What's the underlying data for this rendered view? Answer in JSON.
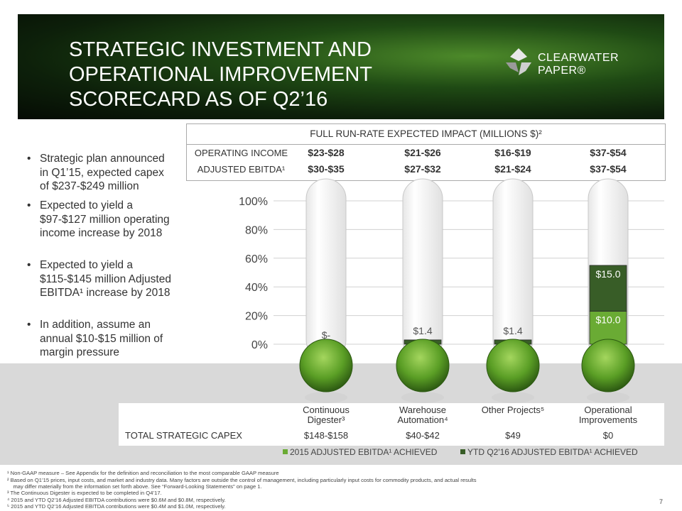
{
  "header": {
    "title_lines": [
      "STRATEGIC INVESTMENT AND",
      "OPERATIONAL IMPROVEMENT",
      "SCORECARD AS OF Q2’16"
    ],
    "logo_top": "CLEARWATER",
    "logo_bottom": "PAPER®"
  },
  "bullets": [
    "Strategic plan announced in Q1’15, expected capex of $237-$249 million",
    "Expected to yield a $97-$127 million operating income increase by 2018",
    "Expected to yield a $115-$145 million Adjusted EBITDA¹ increase by 2018",
    "In addition, assume an annual $10-$15 million of margin pressure"
  ],
  "impact": {
    "heading": "FULL RUN-RATE EXPECTED IMPACT (MILLIONS $)²",
    "rows": [
      {
        "label": "OPERATING INCOME",
        "values": [
          "$23-$28",
          "$21-$26",
          "$16-$19",
          "$37-$54"
        ]
      },
      {
        "label": "ADJUSTED EBITDA¹",
        "values": [
          "$30-$35",
          "$27-$32",
          "$21-$24",
          "$37-$54"
        ]
      }
    ]
  },
  "chart_data": {
    "type": "bar",
    "stacked": true,
    "categories": [
      "Continuous Digester³",
      "Warehouse Automation⁴",
      "Other Projects⁵",
      "Operational Improvements"
    ],
    "series": [
      {
        "name": "2015 ADJUSTED EBITDA¹ ACHIEVED",
        "color": "#6aab34",
        "values": [
          0,
          0,
          0,
          23
        ],
        "amount_labels": [
          null,
          null,
          null,
          "$10.0"
        ]
      },
      {
        "name": "YTD Q2'16 ADJUSTED EBITDA¹ ACHIEVED",
        "color": "#385d27",
        "values": [
          0,
          3,
          3,
          32
        ],
        "amount_labels": [
          "$-",
          "$1.4",
          "$1.4",
          "$15.0"
        ]
      }
    ],
    "ylim": [
      0,
      100
    ],
    "yticks": [
      {
        "value": 0,
        "label": "0%"
      },
      {
        "value": 20,
        "label": "20%"
      },
      {
        "value": 40,
        "label": "40%"
      },
      {
        "value": 60,
        "label": "60%"
      },
      {
        "value": 80,
        "label": "80%"
      },
      {
        "value": 100,
        "label": "100%"
      }
    ],
    "grid": true
  },
  "capex": {
    "label": "TOTAL STRATEGIC CAPEX",
    "values": [
      "$148-$158",
      "$40-$42",
      "$49",
      "$0"
    ]
  },
  "footnotes": [
    "¹ Non-GAAP measure – See Appendix for the definition and reconciliation to the most comparable GAAP measure",
    "² Based on Q1’15 prices, input costs, and market and industry data. Many factors are outside the control of management, including particularly input costs for commodity products, and actual results",
    "    may differ materially from the information set forth above. See “Forward-Looking Statements” on page 1.",
    "³ The Continuous Digester is expected to be completed in Q4’17.",
    "⁴ 2015 and YTD Q2’16 Adjusted EBITDA contributions were $0.6M and $0.8M, respectively.",
    "⁵ 2015 and YTD Q2’16 Adjusted EBITDA contributions were $0.4M and $1.0M, respectively."
  ],
  "page_number": "7"
}
